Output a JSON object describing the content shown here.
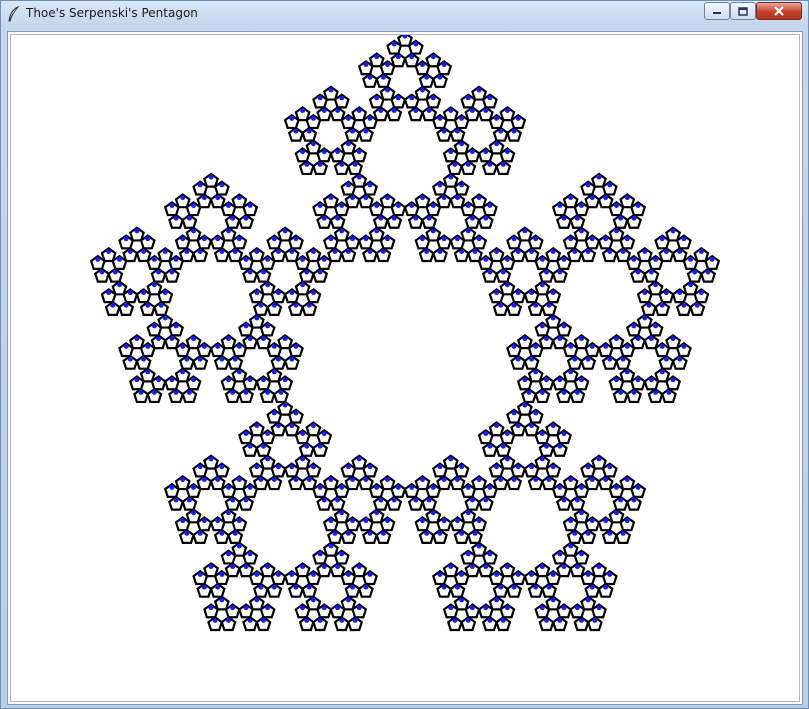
{
  "window": {
    "title": "Thoe's Serpenski's Pentagon",
    "title_icon": "feather-icon",
    "controls": {
      "minimize_icon": "minimize-icon",
      "maximize_icon": "maximize-icon",
      "close_icon": "close-icon"
    }
  },
  "canvas": {
    "background": "#ffffff",
    "fractal": {
      "name": "Sierpinski pentagon",
      "depth": 4,
      "outline_color": "#000000",
      "accent_color": "#1a1aff"
    }
  }
}
